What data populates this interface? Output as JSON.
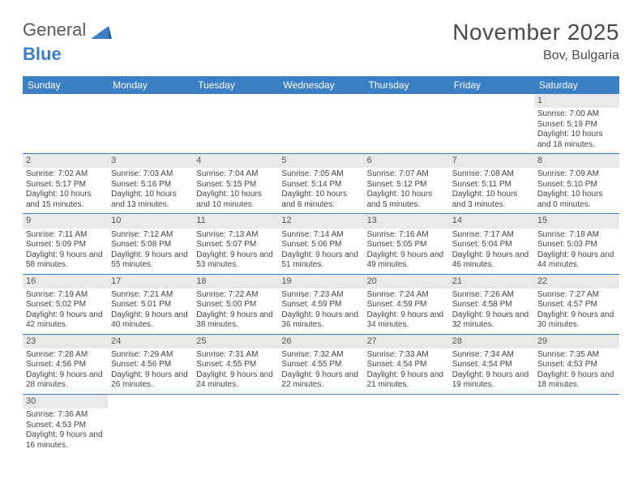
{
  "logo": {
    "part1": "General",
    "part2": "Blue"
  },
  "title": "November 2025",
  "location": "Bov, Bulgaria",
  "colors": {
    "header_bg": "#3b7fc4",
    "header_text": "#ffffff",
    "daynum_bg": "#e9e9e9",
    "line": "#3b7fc4",
    "text": "#444444"
  },
  "day_headers": [
    "Sunday",
    "Monday",
    "Tuesday",
    "Wednesday",
    "Thursday",
    "Friday",
    "Saturday"
  ],
  "weeks": [
    [
      null,
      null,
      null,
      null,
      null,
      null,
      {
        "n": "1",
        "sr": "7:00 AM",
        "ss": "5:19 PM",
        "dl": "10 hours and 18 minutes."
      }
    ],
    [
      {
        "n": "2",
        "sr": "7:02 AM",
        "ss": "5:17 PM",
        "dl": "10 hours and 15 minutes."
      },
      {
        "n": "3",
        "sr": "7:03 AM",
        "ss": "5:16 PM",
        "dl": "10 hours and 13 minutes."
      },
      {
        "n": "4",
        "sr": "7:04 AM",
        "ss": "5:15 PM",
        "dl": "10 hours and 10 minutes."
      },
      {
        "n": "5",
        "sr": "7:05 AM",
        "ss": "5:14 PM",
        "dl": "10 hours and 8 minutes."
      },
      {
        "n": "6",
        "sr": "7:07 AM",
        "ss": "5:12 PM",
        "dl": "10 hours and 5 minutes."
      },
      {
        "n": "7",
        "sr": "7:08 AM",
        "ss": "5:11 PM",
        "dl": "10 hours and 3 minutes."
      },
      {
        "n": "8",
        "sr": "7:09 AM",
        "ss": "5:10 PM",
        "dl": "10 hours and 0 minutes."
      }
    ],
    [
      {
        "n": "9",
        "sr": "7:11 AM",
        "ss": "5:09 PM",
        "dl": "9 hours and 58 minutes."
      },
      {
        "n": "10",
        "sr": "7:12 AM",
        "ss": "5:08 PM",
        "dl": "9 hours and 55 minutes."
      },
      {
        "n": "11",
        "sr": "7:13 AM",
        "ss": "5:07 PM",
        "dl": "9 hours and 53 minutes."
      },
      {
        "n": "12",
        "sr": "7:14 AM",
        "ss": "5:06 PM",
        "dl": "9 hours and 51 minutes."
      },
      {
        "n": "13",
        "sr": "7:16 AM",
        "ss": "5:05 PM",
        "dl": "9 hours and 49 minutes."
      },
      {
        "n": "14",
        "sr": "7:17 AM",
        "ss": "5:04 PM",
        "dl": "9 hours and 46 minutes."
      },
      {
        "n": "15",
        "sr": "7:18 AM",
        "ss": "5:03 PM",
        "dl": "9 hours and 44 minutes."
      }
    ],
    [
      {
        "n": "16",
        "sr": "7:19 AM",
        "ss": "5:02 PM",
        "dl": "9 hours and 42 minutes."
      },
      {
        "n": "17",
        "sr": "7:21 AM",
        "ss": "5:01 PM",
        "dl": "9 hours and 40 minutes."
      },
      {
        "n": "18",
        "sr": "7:22 AM",
        "ss": "5:00 PM",
        "dl": "9 hours and 38 minutes."
      },
      {
        "n": "19",
        "sr": "7:23 AM",
        "ss": "4:59 PM",
        "dl": "9 hours and 36 minutes."
      },
      {
        "n": "20",
        "sr": "7:24 AM",
        "ss": "4:59 PM",
        "dl": "9 hours and 34 minutes."
      },
      {
        "n": "21",
        "sr": "7:26 AM",
        "ss": "4:58 PM",
        "dl": "9 hours and 32 minutes."
      },
      {
        "n": "22",
        "sr": "7:27 AM",
        "ss": "4:57 PM",
        "dl": "9 hours and 30 minutes."
      }
    ],
    [
      {
        "n": "23",
        "sr": "7:28 AM",
        "ss": "4:56 PM",
        "dl": "9 hours and 28 minutes."
      },
      {
        "n": "24",
        "sr": "7:29 AM",
        "ss": "4:56 PM",
        "dl": "9 hours and 26 minutes."
      },
      {
        "n": "25",
        "sr": "7:31 AM",
        "ss": "4:55 PM",
        "dl": "9 hours and 24 minutes."
      },
      {
        "n": "26",
        "sr": "7:32 AM",
        "ss": "4:55 PM",
        "dl": "9 hours and 22 minutes."
      },
      {
        "n": "27",
        "sr": "7:33 AM",
        "ss": "4:54 PM",
        "dl": "9 hours and 21 minutes."
      },
      {
        "n": "28",
        "sr": "7:34 AM",
        "ss": "4:54 PM",
        "dl": "9 hours and 19 minutes."
      },
      {
        "n": "29",
        "sr": "7:35 AM",
        "ss": "4:53 PM",
        "dl": "9 hours and 18 minutes."
      }
    ],
    [
      {
        "n": "30",
        "sr": "7:36 AM",
        "ss": "4:53 PM",
        "dl": "9 hours and 16 minutes."
      },
      null,
      null,
      null,
      null,
      null,
      null
    ]
  ],
  "labels": {
    "sunrise": "Sunrise:",
    "sunset": "Sunset:",
    "daylight": "Daylight:"
  }
}
